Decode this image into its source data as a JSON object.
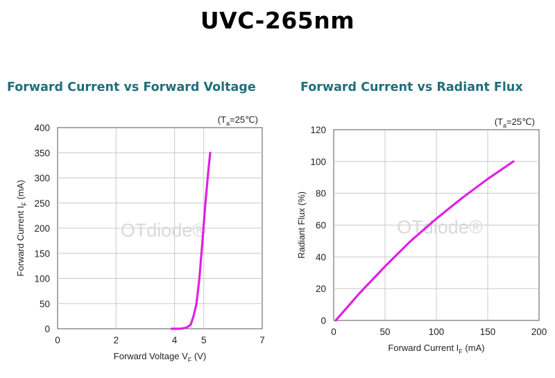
{
  "title": "UVC-265nm",
  "watermark": "OTdiode®",
  "chart_data": [
    {
      "type": "line",
      "title": "Forward Current vs Forward Voltage",
      "condition": "(Ta=25℃)",
      "xlabel": "Forward Voltage VF (V)",
      "ylabel": "Forward Current IF (mA)",
      "xlim": [
        0,
        7
      ],
      "ylim": [
        0,
        400
      ],
      "xticks": [
        0,
        2,
        4,
        5,
        7
      ],
      "yticks": [
        0,
        50,
        100,
        150,
        200,
        250,
        300,
        350,
        400
      ],
      "grid": true,
      "line_color": "#e020e0",
      "series": [
        {
          "x": [
            3.9,
            4.2,
            4.4,
            4.55,
            4.65,
            4.75,
            4.85,
            4.95,
            5.05,
            5.15,
            5.22
          ],
          "y": [
            0,
            0,
            2,
            8,
            25,
            50,
            100,
            170,
            245,
            310,
            350
          ]
        }
      ]
    },
    {
      "type": "line",
      "title": "Forward Current vs Radiant Flux",
      "condition": "(Ta=25℃)",
      "xlabel": "Forward Current IF (mA)",
      "ylabel": "Radiant Flux (%)",
      "xlim": [
        0,
        200
      ],
      "ylim": [
        0,
        120
      ],
      "xticks": [
        0,
        50,
        100,
        150,
        200
      ],
      "yticks": [
        0,
        20,
        40,
        60,
        80,
        100,
        120
      ],
      "grid": true,
      "line_color": "#e020e0",
      "series": [
        {
          "x": [
            2,
            25,
            50,
            75,
            100,
            125,
            150,
            175
          ],
          "y": [
            0,
            17,
            34,
            50,
            64,
            77,
            89,
            100
          ]
        }
      ]
    }
  ]
}
